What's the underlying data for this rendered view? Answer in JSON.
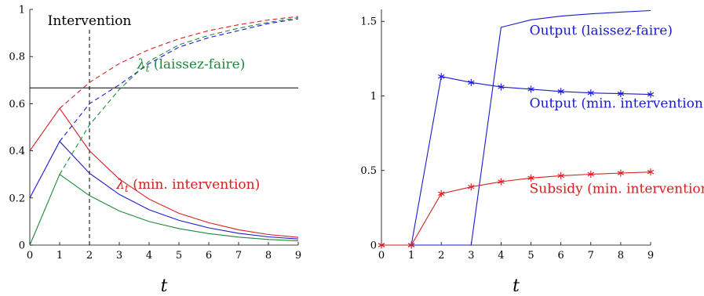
{
  "chart_data": [
    {
      "type": "line",
      "xlabel": "t",
      "ylabel": "",
      "xlim": [
        0,
        9
      ],
      "ylim": [
        0,
        1
      ],
      "x_ticks": [
        "0",
        "1",
        "2",
        "3",
        "4",
        "5",
        "6",
        "7",
        "8",
        "9"
      ],
      "y_ticks": [
        "0",
        "0.2",
        "0.4",
        "0.6",
        "0.8",
        "1"
      ],
      "y_tick_values": [
        0,
        0.2,
        0.4,
        0.6,
        0.8,
        1
      ],
      "x": [
        0,
        1,
        2,
        3,
        4,
        5,
        6,
        7,
        8,
        9
      ],
      "series": [
        {
          "color": "#d42020",
          "style": "solid",
          "values": [
            0.4,
            0.58,
            0.4,
            0.28,
            0.195,
            0.135,
            0.095,
            0.065,
            0.045,
            0.033
          ]
        },
        {
          "color": "#1a1acc",
          "style": "solid",
          "values": [
            0.2,
            0.44,
            0.305,
            0.215,
            0.15,
            0.105,
            0.073,
            0.05,
            0.035,
            0.026
          ]
        },
        {
          "color": "#1a8a3a",
          "style": "solid",
          "values": [
            0.0,
            0.3,
            0.21,
            0.145,
            0.1,
            0.07,
            0.049,
            0.034,
            0.024,
            0.018
          ]
        },
        {
          "color": "#d42020",
          "style": "dashed",
          "values": [
            null,
            0.58,
            0.69,
            0.77,
            0.83,
            0.875,
            0.91,
            0.935,
            0.955,
            0.97
          ]
        },
        {
          "color": "#1a1acc",
          "style": "dashed",
          "values": [
            null,
            0.44,
            0.6,
            0.68,
            0.77,
            0.84,
            0.88,
            0.91,
            0.94,
            0.96
          ]
        },
        {
          "color": "#1a8a3a",
          "style": "dashed",
          "values": [
            null,
            0.3,
            0.51,
            0.66,
            0.78,
            0.85,
            0.89,
            0.92,
            0.945,
            0.965
          ]
        }
      ],
      "hline": {
        "y": 0.667,
        "color": "#000000"
      },
      "vline": {
        "x": 2,
        "label": "Intervention",
        "color": "#000000"
      },
      "annotations": [
        {
          "text": "(laissez-faire)",
          "symbol": "λ",
          "sub": "t",
          "color": "#1a8a3a",
          "x": 3.6,
          "y": 0.75
        },
        {
          "text": "(min. intervention)",
          "symbol": "λ",
          "sub": "t",
          "color": "#d42020",
          "x": 2.9,
          "y": 0.24
        }
      ]
    },
    {
      "type": "line",
      "xlabel": "t",
      "ylabel": "",
      "xlim": [
        0,
        9
      ],
      "ylim": [
        0,
        1.58
      ],
      "x_ticks": [
        "0",
        "1",
        "2",
        "3",
        "4",
        "5",
        "6",
        "7",
        "8",
        "9"
      ],
      "y_ticks": [
        "0",
        "0.5",
        "1",
        "1.5"
      ],
      "y_tick_values": [
        0,
        0.5,
        1,
        1.5
      ],
      "x": [
        0,
        1,
        2,
        3,
        4,
        5,
        6,
        7,
        8,
        9
      ],
      "series": [
        {
          "name": "Output (laissez-faire)",
          "color": "#1a1acc",
          "marker": "none",
          "values": [
            0,
            0,
            0,
            0,
            1.46,
            1.51,
            1.535,
            1.55,
            1.562,
            1.572
          ]
        },
        {
          "name": "Output (min. intervention)",
          "color": "#1a1acc",
          "marker": "star",
          "values": [
            0,
            0,
            1.13,
            1.09,
            1.06,
            1.045,
            1.03,
            1.02,
            1.015,
            1.01
          ]
        },
        {
          "name": "Subsidy (min. intervention)",
          "color": "#d42020",
          "marker": "star",
          "values": [
            0,
            0,
            0.345,
            0.39,
            0.425,
            0.45,
            0.465,
            0.475,
            0.483,
            0.49
          ]
        }
      ],
      "annotations": [
        {
          "text": "Output (laissez-faire)",
          "color": "#1a1acc",
          "x": 4.95,
          "y": 1.41
        },
        {
          "text": "Output (min. intervention)",
          "color": "#1a1acc",
          "x": 4.95,
          "y": 0.92
        },
        {
          "text": "Subsidy (min. intervention)",
          "color": "#d42020",
          "x": 4.95,
          "y": 0.35
        }
      ]
    }
  ]
}
